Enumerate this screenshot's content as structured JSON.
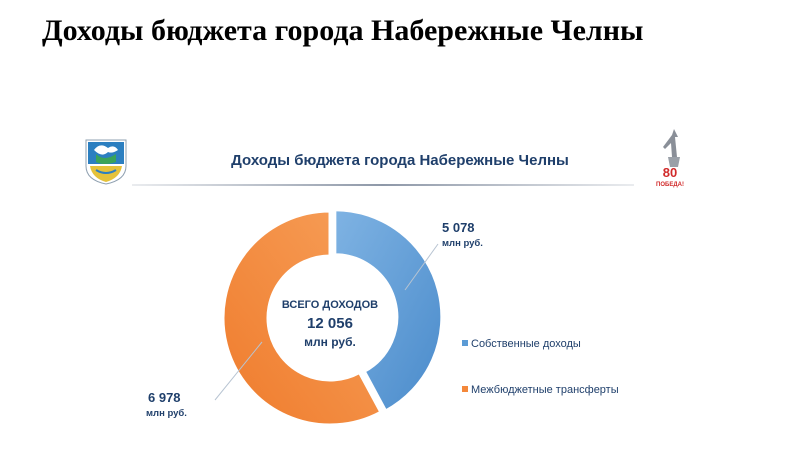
{
  "page": {
    "title": "Доходы бюджета города Набережные Челны"
  },
  "slide": {
    "title": "Доходы бюджета города Набережные Челны",
    "victory_badge_text": "80",
    "victory_badge_sub": "ПОБЕДА!"
  },
  "chart_data": {
    "type": "pie",
    "donut": true,
    "title": "Доходы бюджета города Набережные Челны",
    "center_label": [
      "ВСЕГО ДОХОДОВ",
      "12 056",
      "млн руб."
    ],
    "total": 12056,
    "series": [
      {
        "name": "Собственные доходы",
        "value": 5078,
        "value_label": "5 078",
        "unit": "млн руб.",
        "color": "#5b9bd5"
      },
      {
        "name": "Межбюджетные трансферты",
        "value": 6978,
        "value_label": "6 978",
        "unit": "млн руб.",
        "color": "#f4883b"
      }
    ],
    "legend_position": "right"
  }
}
